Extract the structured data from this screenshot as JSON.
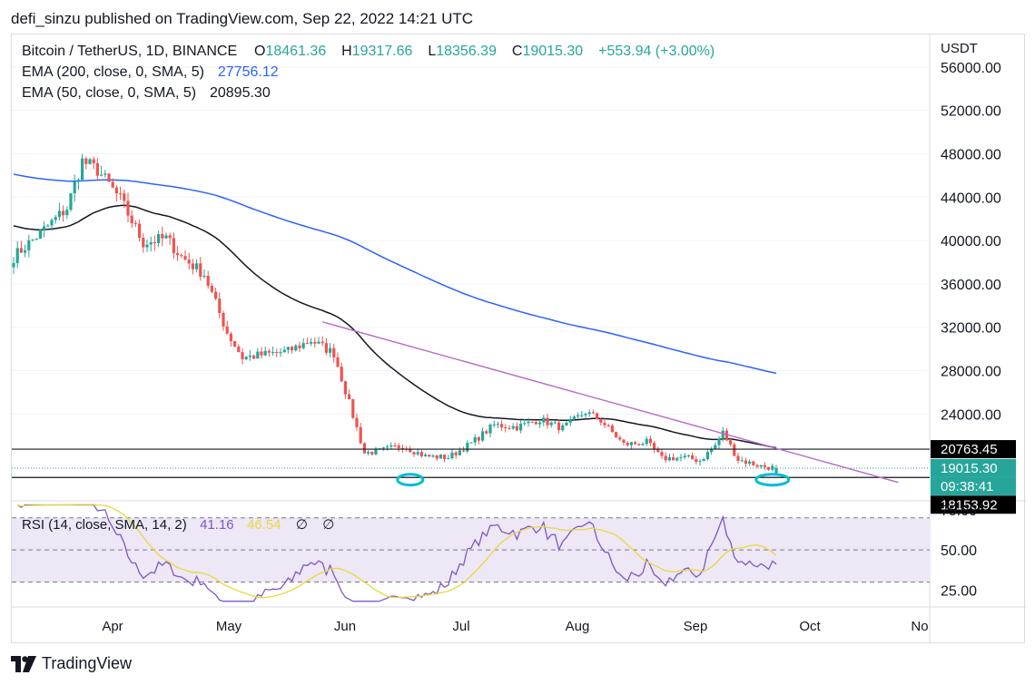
{
  "header": {
    "publisher_text": "defi_sinzu published on TradingView.com, Sep 22, 2022 14:21 UTC"
  },
  "legend": {
    "symbol": "Bitcoin / TetherUS, 1D, BINANCE",
    "o_label": "O",
    "o_value": "18461.36",
    "h_label": "H",
    "h_value": "19317.66",
    "l_label": "L",
    "l_value": "18356.39",
    "c_label": "C",
    "c_value": "19015.30",
    "change": "+553.94 (+3.00%)",
    "ema200_label": "EMA (200, close, 0, SMA, 5)",
    "ema200_value": "27756.12",
    "ema50_label": "EMA (50, close, 0, SMA, 5)",
    "ema50_value": "20895.30"
  },
  "rsi_legend": {
    "label": "RSI (14, close, SMA, 14, 2)",
    "value1": "41.16",
    "value2": "46.54",
    "extra1": "∅",
    "extra2": "∅"
  },
  "price_axis": {
    "currency": "USDT",
    "ticks": [
      "56000.00",
      "52000.00",
      "48000.00",
      "44000.00",
      "40000.00",
      "36000.00",
      "32000.00",
      "28000.00",
      "24000.00"
    ],
    "badges": [
      {
        "text": "20763.45",
        "bg": "#000000"
      },
      {
        "text": "19015.30",
        "bg": "#26a69a"
      },
      {
        "text": "09:38:41",
        "bg": "#26a69a"
      },
      {
        "text": "18153.92",
        "bg": "#000000"
      }
    ]
  },
  "rsi_axis": {
    "ticks": [
      "75.00",
      "50.00",
      "25.00"
    ]
  },
  "time_axis": {
    "labels": [
      "Apr",
      "May",
      "Jun",
      "Jul",
      "Aug",
      "Sep",
      "Oct",
      "No"
    ]
  },
  "footer": {
    "brand": "TradingView"
  },
  "colors": {
    "up": "#26a69a",
    "down": "#ef5350",
    "ema200": "#2962ff",
    "ema50": "#131722",
    "trendline": "#ba68c8",
    "rsi_line": "#7e57c2",
    "rsi_ma": "#e8d93b",
    "rsi_band": "#ede7f6",
    "marker": "#00bcd4"
  },
  "chart_data": [
    {
      "type": "candlestick",
      "title": "Bitcoin / TetherUS, 1D, BINANCE",
      "ylabel": "USDT",
      "ylim": [
        16000,
        59000
      ],
      "x_months": [
        "Apr",
        "May",
        "Jun",
        "Jul",
        "Aug",
        "Sep",
        "Oct"
      ],
      "close_anchors": [
        [
          0,
          38500
        ],
        [
          8,
          41000
        ],
        [
          14,
          43000
        ],
        [
          18,
          47300
        ],
        [
          22,
          46500
        ],
        [
          28,
          43800
        ],
        [
          34,
          39800
        ],
        [
          40,
          40200
        ],
        [
          44,
          38500
        ],
        [
          50,
          36900
        ],
        [
          56,
          31500
        ],
        [
          60,
          29200
        ],
        [
          66,
          29500
        ],
        [
          72,
          29800
        ],
        [
          78,
          30800
        ],
        [
          84,
          29600
        ],
        [
          88,
          25000
        ],
        [
          92,
          20400
        ],
        [
          96,
          20600
        ],
        [
          102,
          21100
        ],
        [
          108,
          20100
        ],
        [
          114,
          20000
        ],
        [
          120,
          21300
        ],
        [
          126,
          23000
        ],
        [
          132,
          22800
        ],
        [
          138,
          23500
        ],
        [
          144,
          22700
        ],
        [
          150,
          24200
        ],
        [
          154,
          23400
        ],
        [
          160,
          21200
        ],
        [
          166,
          21400
        ],
        [
          170,
          19900
        ],
        [
          176,
          20000
        ],
        [
          180,
          19700
        ],
        [
          184,
          21100
        ],
        [
          186,
          22300
        ],
        [
          190,
          19800
        ],
        [
          196,
          19200
        ],
        [
          200,
          19015
        ]
      ],
      "last_candle": {
        "open": 18461.36,
        "high": 19317.66,
        "low": 18356.39,
        "close": 19015.3
      },
      "ema200_last": 27756.12,
      "ema50_last": 20895.3,
      "horizontal_levels": [
        20763.45,
        18153.92
      ],
      "current_price": 19015.3
    },
    {
      "type": "line",
      "title": "RSI (14, close, SMA, 14, 2)",
      "ylim": [
        15,
        80
      ],
      "bands": [
        70,
        50,
        30
      ],
      "series": [
        {
          "name": "RSI",
          "last": 41.16
        },
        {
          "name": "RSI SMA",
          "last": 46.54
        }
      ]
    }
  ]
}
